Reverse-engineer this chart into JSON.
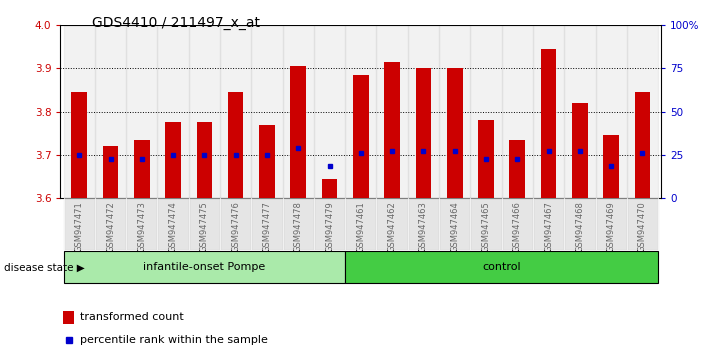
{
  "title": "GDS4410 / 211497_x_at",
  "samples": [
    "GSM947471",
    "GSM947472",
    "GSM947473",
    "GSM947474",
    "GSM947475",
    "GSM947476",
    "GSM947477",
    "GSM947478",
    "GSM947479",
    "GSM947461",
    "GSM947462",
    "GSM947463",
    "GSM947464",
    "GSM947465",
    "GSM947466",
    "GSM947467",
    "GSM947468",
    "GSM947469",
    "GSM947470"
  ],
  "bar_tops": [
    3.845,
    3.72,
    3.735,
    3.775,
    3.775,
    3.845,
    3.77,
    3.905,
    3.645,
    3.885,
    3.915,
    3.9,
    3.9,
    3.78,
    3.735,
    3.945,
    3.82,
    3.745,
    3.845
  ],
  "bar_bottom": 3.6,
  "percentile_vals": [
    3.7,
    3.69,
    3.69,
    3.7,
    3.7,
    3.7,
    3.7,
    3.715,
    3.675,
    3.705,
    3.71,
    3.71,
    3.71,
    3.69,
    3.69,
    3.71,
    3.71,
    3.675,
    3.705
  ],
  "ylim_left": [
    3.6,
    4.0
  ],
  "ylim_right": [
    0,
    100
  ],
  "yticks_left": [
    3.6,
    3.7,
    3.8,
    3.9,
    4.0
  ],
  "yticks_right": [
    0,
    25,
    50,
    75,
    100
  ],
  "ytick_labels_right": [
    "0",
    "25",
    "50",
    "75",
    "100%"
  ],
  "bar_color": "#cc0000",
  "percentile_color": "#0000cc",
  "group1_label": "infantile-onset Pompe",
  "group2_label": "control",
  "group1_count": 9,
  "group2_count": 10,
  "group1_color": "#aaeaaa",
  "group2_color": "#44cc44",
  "disease_state_label": "disease state",
  "legend_bar_label": "transformed count",
  "legend_pct_label": "percentile rank within the sample",
  "tick_label_color_left": "#cc0000",
  "tick_label_color_right": "#0000cc",
  "tick_bg_color": "#cccccc",
  "title_fontsize": 10,
  "bar_width": 0.5
}
